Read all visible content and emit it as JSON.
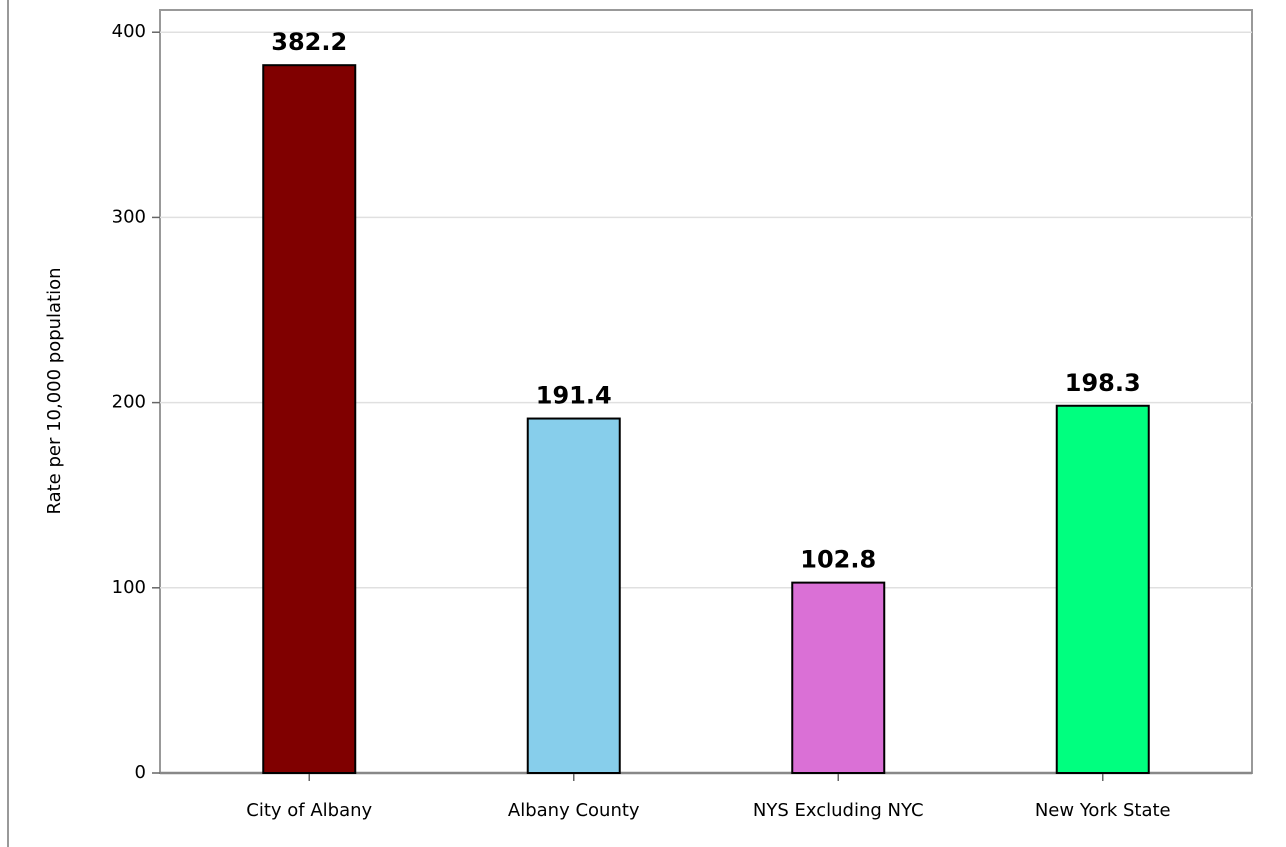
{
  "chart_data": {
    "type": "bar",
    "y_label": "Rate per 10,000 population",
    "categories": [
      "City of Albany",
      "Albany County",
      "NYS Excluding NYC",
      "New York State"
    ],
    "values": [
      382.2,
      191.4,
      102.8,
      198.3
    ],
    "colors": [
      "#800000",
      "#87ceeb",
      "#da70d6",
      "#00ff7f"
    ],
    "ylim": [
      0,
      412
    ],
    "yticks": [
      0,
      100,
      200,
      300,
      400
    ],
    "grid": true
  }
}
